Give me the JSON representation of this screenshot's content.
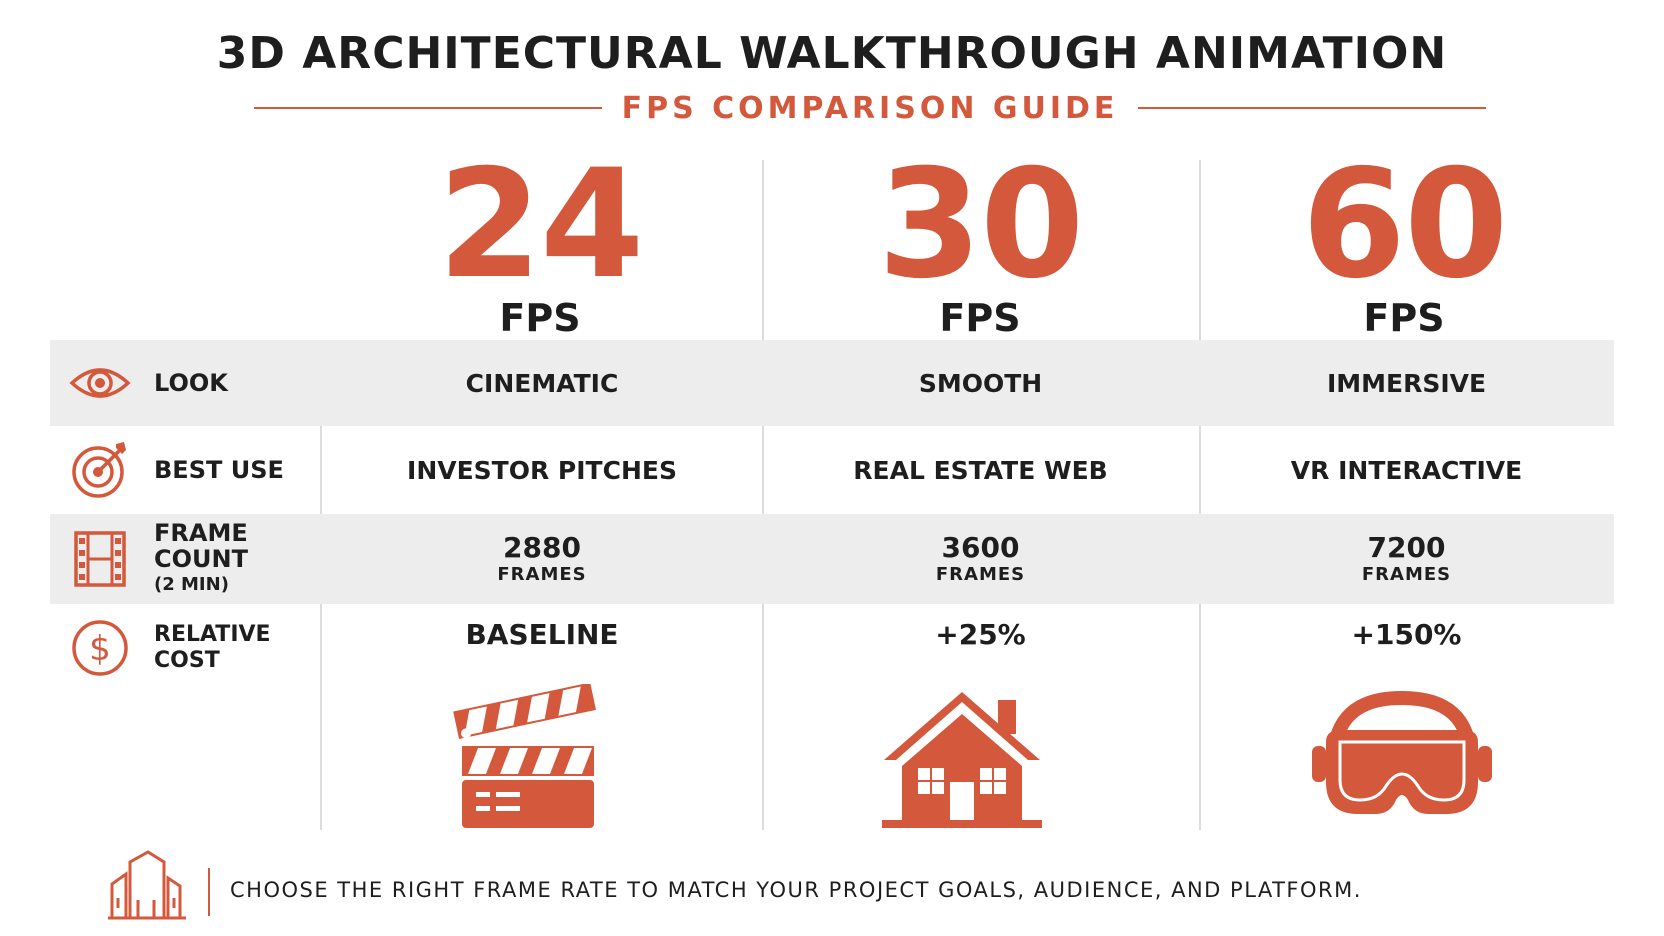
{
  "header": {
    "title": "3D ARCHITECTURAL WALKTHROUGH ANIMATION",
    "subtitle": "FPS COMPARISON GUIDE"
  },
  "columns": [
    {
      "fps": "24",
      "unit": "FPS",
      "look": "CINEMATIC",
      "best_use": "INVESTOR PITCHES",
      "frame_count": "2880",
      "frames_label": "FRAMES",
      "cost": "BASELINE",
      "illustration": "clapperboard-icon"
    },
    {
      "fps": "30",
      "unit": "FPS",
      "look": "SMOOTH",
      "best_use": "REAL ESTATE WEB",
      "frame_count": "3600",
      "frames_label": "FRAMES",
      "cost": "+25%",
      "illustration": "house-icon"
    },
    {
      "fps": "60",
      "unit": "FPS",
      "look": "IMMERSIVE",
      "best_use": "VR INTERACTIVE",
      "frame_count": "7200",
      "frames_label": "FRAMES",
      "cost": "+150%",
      "illustration": "vr-headset-icon"
    }
  ],
  "rows": {
    "look": {
      "label": "LOOK",
      "icon": "eye-icon"
    },
    "best_use": {
      "label": "BEST USE",
      "icon": "target-icon"
    },
    "frame_count": {
      "label": "FRAME COUNT",
      "sublabel": "(2 MIN)",
      "icon": "film-strip-icon"
    },
    "cost": {
      "label": "RELATIVE COST",
      "icon": "dollar-icon"
    }
  },
  "footer": {
    "text": "CHOOSE THE RIGHT FRAME RATE TO MATCH YOUR PROJECT GOALS, AUDIENCE, AND PLATFORM.",
    "icon": "buildings-icon"
  },
  "colors": {
    "accent": "#d4583b",
    "text": "#1e1e1e",
    "row_shade": "#ededed"
  }
}
